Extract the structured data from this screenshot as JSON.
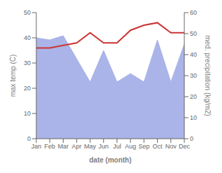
{
  "chart_data": {
    "type": "line",
    "xlabel": "date (month)",
    "ylabel": "max temp (C)",
    "y2label": "med. precipitation (kg/m2)",
    "categories": [
      "Jan",
      "Feb",
      "Mar",
      "Apr",
      "May",
      "Jun",
      "Jul",
      "Aug",
      "Sep",
      "Oct",
      "Nov",
      "Dec"
    ],
    "series": [
      {
        "type": "area",
        "color": "#aab4e8",
        "axis": "y2",
        "values": [
          48,
          47,
          49,
          38,
          27,
          42,
          27,
          31,
          27,
          47,
          27,
          45
        ]
      },
      {
        "type": "line",
        "color": "#cc3333",
        "values": [
          36,
          36,
          37,
          38,
          42,
          38,
          38,
          43,
          45,
          46,
          42,
          42
        ]
      }
    ],
    "ylim": [
      0,
      50
    ],
    "yticks": [
      0,
      10,
      20,
      30,
      40,
      50
    ],
    "y2lim": [
      0,
      60
    ],
    "y2ticks": [
      0,
      10,
      20,
      30,
      40,
      50,
      60
    ],
    "grid": false
  }
}
